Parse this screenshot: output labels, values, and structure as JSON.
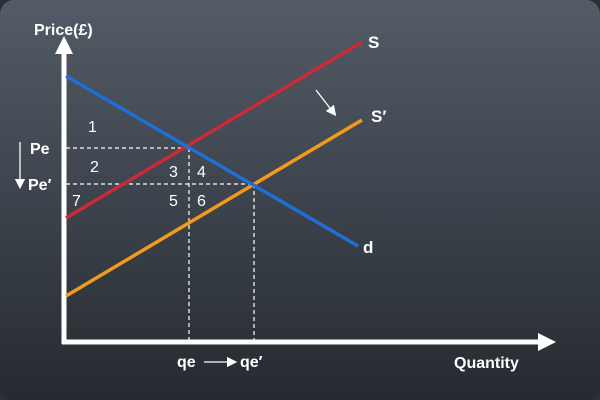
{
  "axes": {
    "y_label": "Price(£)",
    "x_label": "Quantity"
  },
  "price_labels": {
    "pe": "Pe",
    "pe_prime": "Pe′"
  },
  "quantity_labels": {
    "qe": "qe",
    "qe_prime": "qe′"
  },
  "curves": {
    "supply": {
      "label": "S",
      "color": "#cc2a35"
    },
    "supply_shifted": {
      "label": "S′",
      "color": "#f29a1c"
    },
    "demand": {
      "label": "d",
      "color": "#1f6fd6"
    }
  },
  "regions": [
    "1",
    "2",
    "3",
    "4",
    "5",
    "6",
    "7"
  ],
  "colors": {
    "axis": "#ffffff",
    "guide": "#ffffff",
    "text": "#ffffff"
  }
}
